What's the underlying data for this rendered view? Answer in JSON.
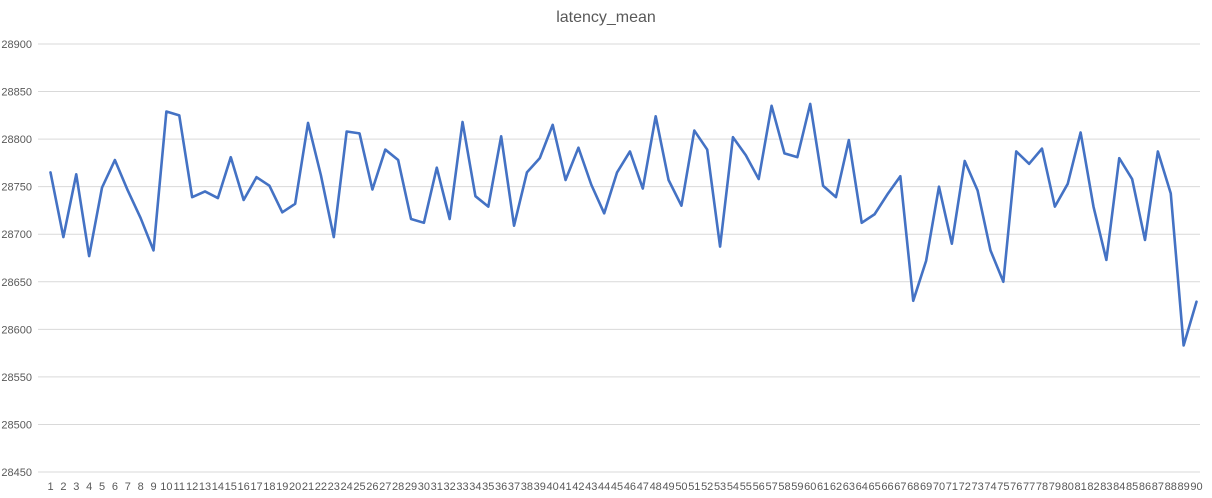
{
  "chart_data": {
    "type": "line",
    "title": "latency_mean",
    "xlabel": "",
    "ylabel": "",
    "ylim": [
      28450,
      28900
    ],
    "yticks": [
      28450,
      28500,
      28550,
      28600,
      28650,
      28700,
      28750,
      28800,
      28850,
      28900
    ],
    "grid": true,
    "legend": "none",
    "line_color": "#4472c4",
    "x": [
      1,
      2,
      3,
      4,
      5,
      6,
      7,
      8,
      9,
      10,
      11,
      12,
      13,
      14,
      15,
      16,
      17,
      18,
      19,
      20,
      21,
      22,
      23,
      24,
      25,
      26,
      27,
      28,
      29,
      30,
      31,
      32,
      33,
      34,
      35,
      36,
      37,
      38,
      39,
      40,
      41,
      42,
      43,
      44,
      45,
      46,
      47,
      48,
      49,
      50,
      51,
      52,
      53,
      54,
      55,
      56,
      57,
      58,
      59,
      60,
      61,
      62,
      63,
      64,
      65,
      66,
      67,
      68,
      69,
      70,
      71,
      72,
      73,
      74,
      75,
      76,
      77,
      78,
      79,
      80,
      81,
      82,
      83,
      84,
      85,
      86,
      87,
      88,
      89,
      90
    ],
    "series": [
      {
        "values": [
          28765,
          28697,
          28763,
          28677,
          28749,
          28778,
          28746,
          28717,
          28683,
          28829,
          28825,
          28739,
          28745,
          28738,
          28781,
          28736,
          28760,
          28751,
          28723,
          28732,
          28817,
          28762,
          28697,
          28808,
          28806,
          28747,
          28789,
          28778,
          28716,
          28712,
          28770,
          28716,
          28818,
          28740,
          28729,
          28803,
          28709,
          28765,
          28780,
          28815,
          28757,
          28791,
          28752,
          28722,
          28765,
          28787,
          28748,
          28824,
          28757,
          28730,
          28809,
          28789,
          28687,
          28802,
          28783,
          28758,
          28835,
          28785,
          28781,
          28837,
          28751,
          28739,
          28799,
          28712,
          28721,
          28742,
          28761,
          28630,
          28672,
          28750,
          28690,
          28777,
          28746,
          28683,
          28650,
          28787,
          28774,
          28790,
          28729,
          28753,
          28807,
          28729,
          28673,
          28780,
          28758,
          28694,
          28787,
          28743,
          28583,
          28629
        ]
      }
    ]
  }
}
